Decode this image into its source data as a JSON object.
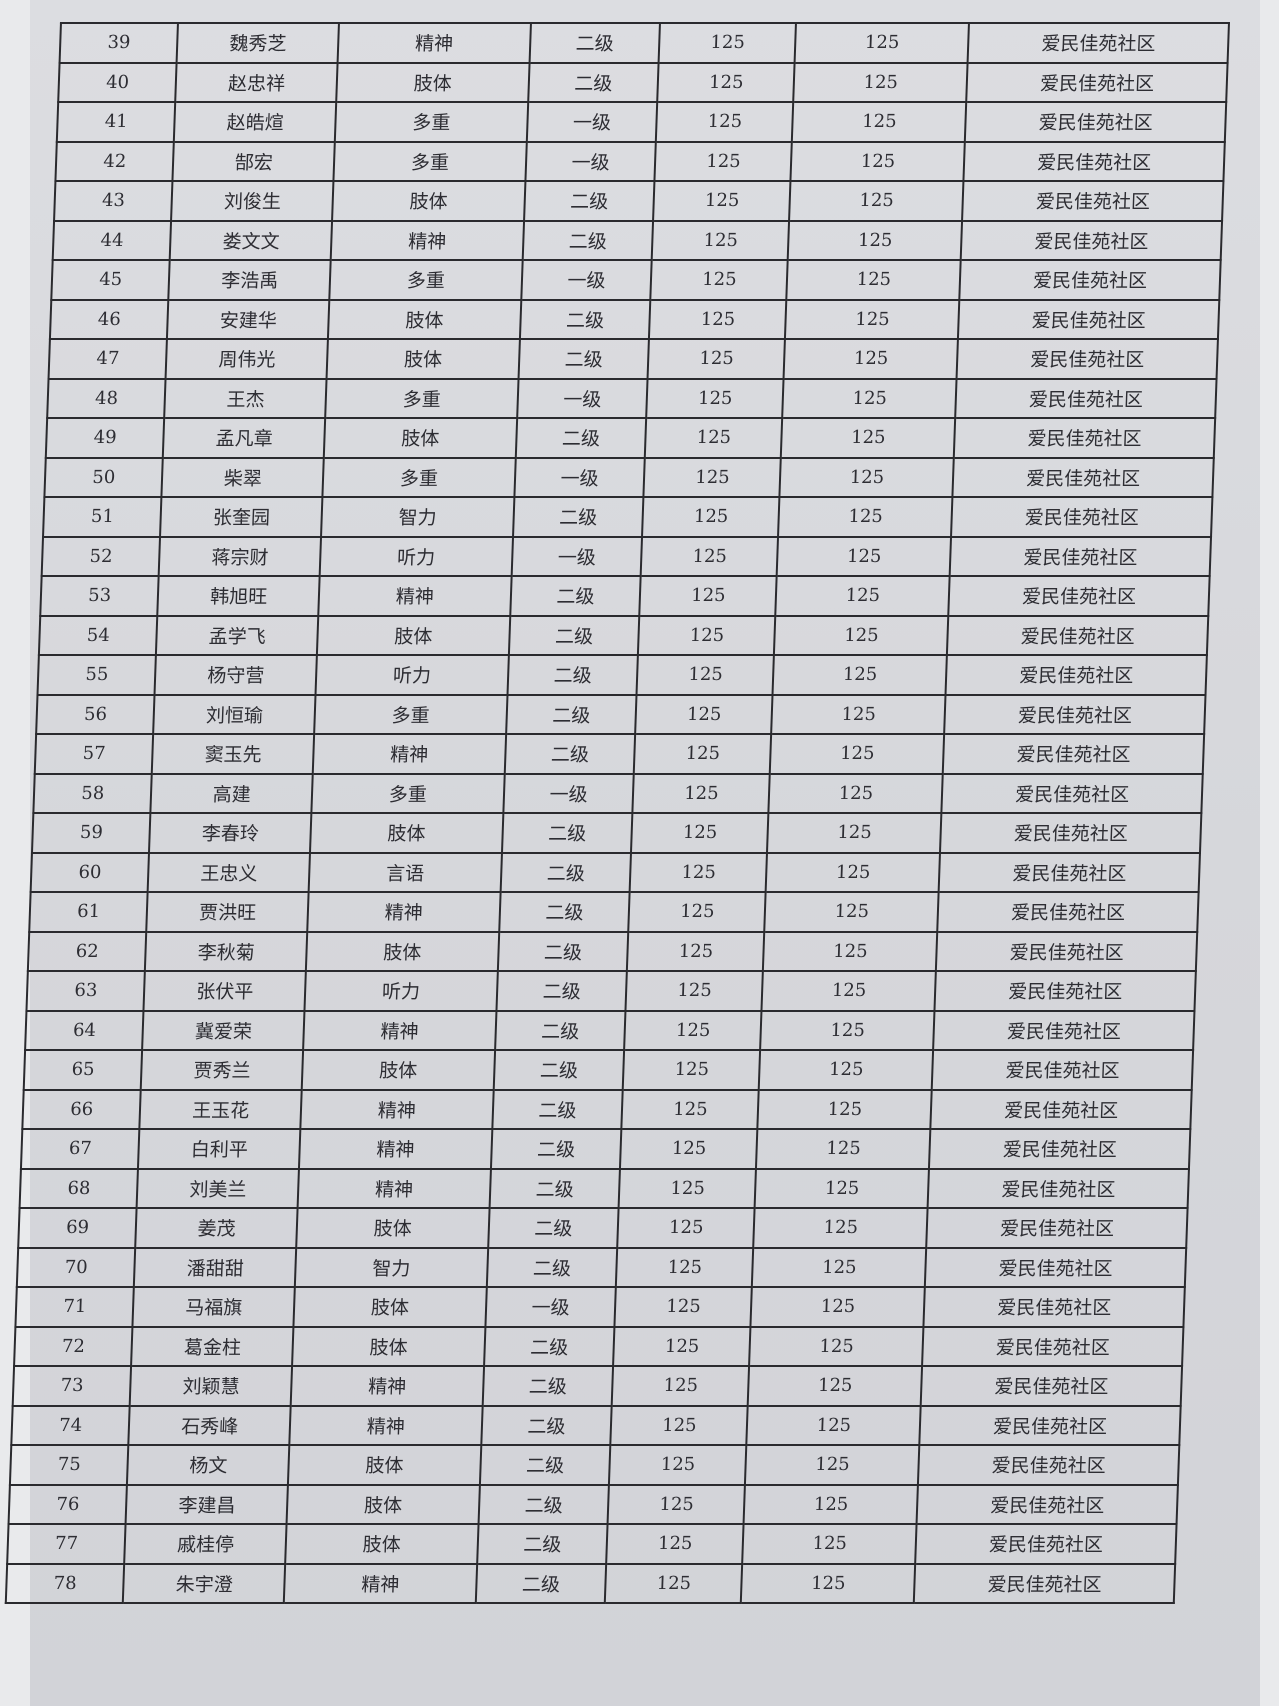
{
  "table": {
    "rows": [
      [
        "39",
        "魏秀芝",
        "精神",
        "二级",
        "125",
        "125",
        "爱民佳苑社区"
      ],
      [
        "40",
        "赵忠祥",
        "肢体",
        "二级",
        "125",
        "125",
        "爱民佳苑社区"
      ],
      [
        "41",
        "赵皓煊",
        "多重",
        "一级",
        "125",
        "125",
        "爱民佳苑社区"
      ],
      [
        "42",
        "郜宏",
        "多重",
        "一级",
        "125",
        "125",
        "爱民佳苑社区"
      ],
      [
        "43",
        "刘俊生",
        "肢体",
        "二级",
        "125",
        "125",
        "爱民佳苑社区"
      ],
      [
        "44",
        "娄文文",
        "精神",
        "二级",
        "125",
        "125",
        "爱民佳苑社区"
      ],
      [
        "45",
        "李浩禹",
        "多重",
        "一级",
        "125",
        "125",
        "爱民佳苑社区"
      ],
      [
        "46",
        "安建华",
        "肢体",
        "二级",
        "125",
        "125",
        "爱民佳苑社区"
      ],
      [
        "47",
        "周伟光",
        "肢体",
        "二级",
        "125",
        "125",
        "爱民佳苑社区"
      ],
      [
        "48",
        "王杰",
        "多重",
        "一级",
        "125",
        "125",
        "爱民佳苑社区"
      ],
      [
        "49",
        "孟凡章",
        "肢体",
        "二级",
        "125",
        "125",
        "爱民佳苑社区"
      ],
      [
        "50",
        "柴翠",
        "多重",
        "一级",
        "125",
        "125",
        "爱民佳苑社区"
      ],
      [
        "51",
        "张奎园",
        "智力",
        "二级",
        "125",
        "125",
        "爱民佳苑社区"
      ],
      [
        "52",
        "蒋宗财",
        "听力",
        "一级",
        "125",
        "125",
        "爱民佳苑社区"
      ],
      [
        "53",
        "韩旭旺",
        "精神",
        "二级",
        "125",
        "125",
        "爱民佳苑社区"
      ],
      [
        "54",
        "孟学飞",
        "肢体",
        "二级",
        "125",
        "125",
        "爱民佳苑社区"
      ],
      [
        "55",
        "杨守营",
        "听力",
        "二级",
        "125",
        "125",
        "爱民佳苑社区"
      ],
      [
        "56",
        "刘恒瑜",
        "多重",
        "二级",
        "125",
        "125",
        "爱民佳苑社区"
      ],
      [
        "57",
        "窦玉先",
        "精神",
        "二级",
        "125",
        "125",
        "爱民佳苑社区"
      ],
      [
        "58",
        "高建",
        "多重",
        "一级",
        "125",
        "125",
        "爱民佳苑社区"
      ],
      [
        "59",
        "李春玲",
        "肢体",
        "二级",
        "125",
        "125",
        "爱民佳苑社区"
      ],
      [
        "60",
        "王忠义",
        "言语",
        "二级",
        "125",
        "125",
        "爱民佳苑社区"
      ],
      [
        "61",
        "贾洪旺",
        "精神",
        "二级",
        "125",
        "125",
        "爱民佳苑社区"
      ],
      [
        "62",
        "李秋菊",
        "肢体",
        "二级",
        "125",
        "125",
        "爱民佳苑社区"
      ],
      [
        "63",
        "张伏平",
        "听力",
        "二级",
        "125",
        "125",
        "爱民佳苑社区"
      ],
      [
        "64",
        "冀爱荣",
        "精神",
        "二级",
        "125",
        "125",
        "爱民佳苑社区"
      ],
      [
        "65",
        "贾秀兰",
        "肢体",
        "二级",
        "125",
        "125",
        "爱民佳苑社区"
      ],
      [
        "66",
        "王玉花",
        "精神",
        "二级",
        "125",
        "125",
        "爱民佳苑社区"
      ],
      [
        "67",
        "白利平",
        "精神",
        "二级",
        "125",
        "125",
        "爱民佳苑社区"
      ],
      [
        "68",
        "刘美兰",
        "精神",
        "二级",
        "125",
        "125",
        "爱民佳苑社区"
      ],
      [
        "69",
        "姜茂",
        "肢体",
        "二级",
        "125",
        "125",
        "爱民佳苑社区"
      ],
      [
        "70",
        "潘甜甜",
        "智力",
        "二级",
        "125",
        "125",
        "爱民佳苑社区"
      ],
      [
        "71",
        "马福旗",
        "肢体",
        "一级",
        "125",
        "125",
        "爱民佳苑社区"
      ],
      [
        "72",
        "葛金柱",
        "肢体",
        "二级",
        "125",
        "125",
        "爱民佳苑社区"
      ],
      [
        "73",
        "刘颖慧",
        "精神",
        "二级",
        "125",
        "125",
        "爱民佳苑社区"
      ],
      [
        "74",
        "石秀峰",
        "精神",
        "二级",
        "125",
        "125",
        "爱民佳苑社区"
      ],
      [
        "75",
        "杨文",
        "肢体",
        "二级",
        "125",
        "125",
        "爱民佳苑社区"
      ],
      [
        "76",
        "李建昌",
        "肢体",
        "二级",
        "125",
        "125",
        "爱民佳苑社区"
      ],
      [
        "77",
        "戚桂停",
        "肢体",
        "二级",
        "125",
        "125",
        "爱民佳苑社区"
      ],
      [
        "78",
        "朱宇澄",
        "精神",
        "二级",
        "125",
        "125",
        "爱民佳苑社区"
      ]
    ]
  }
}
